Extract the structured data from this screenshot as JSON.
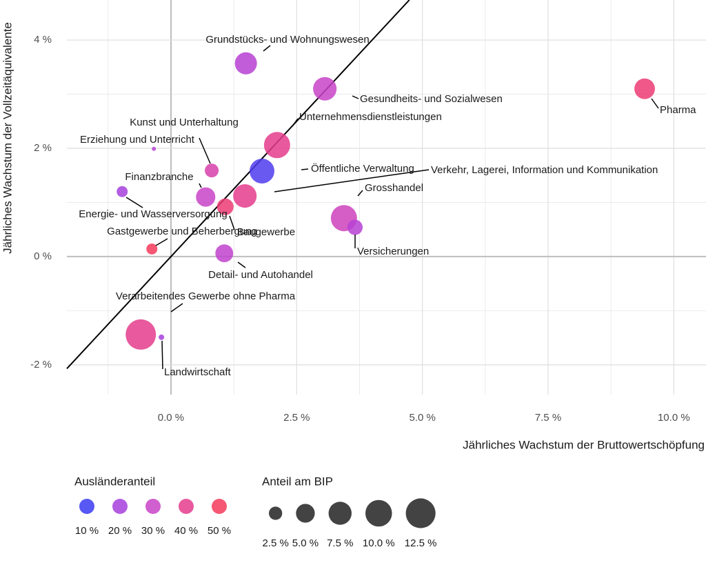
{
  "chart_data": {
    "type": "scatter",
    "x_label": "Jährliches Wachstum der Bruttowertschöpfung",
    "y_label": "Jährliches Wachstum der Vollzeitäquivalente",
    "labels": [
      "Grundstücks- und Wohnungswesen",
      "Gesundheits- und Sozialwesen",
      "Pharma",
      "Unternehmensdienstleistungen",
      "Kunst und Unterhaltung",
      "Erziehung und Unterricht",
      "Öffentliche Verwaltung",
      "Verkehr, Lagerei, Information und Kommunikation",
      "Finanzbranche",
      "Energie- und Wasserversorgung",
      "Baugewerbe",
      "Grosshandel",
      "Versicherungen",
      "Gastgewerbe und Beherbergung",
      "Detail- und Autohandel",
      "Verarbeitendes Gewerbe ohne Pharma",
      "Landwirtschaft"
    ],
    "x": [
      1.49,
      3.06,
      9.42,
      2.11,
      0.81,
      -0.34,
      1.81,
      1.47,
      0.69,
      -0.97,
      1.08,
      3.44,
      3.66,
      -0.38,
      1.06,
      -0.6,
      -0.19
    ],
    "values": [
      3.57,
      3.1,
      3.1,
      2.06,
      1.59,
      1.99,
      1.58,
      1.12,
      1.1,
      1.2,
      0.92,
      0.71,
      0.54,
      0.14,
      0.06,
      -1.44,
      -1.49
    ],
    "sizes": [
      6.9,
      7.8,
      6.0,
      9.7,
      2.7,
      0.24,
      8.7,
      7.8,
      5.3,
      1.7,
      3.9,
      9.7,
      3.3,
      1.7,
      4.5,
      13.0,
      0.43
    ],
    "foreign_share": [
      25,
      30,
      45,
      40,
      35,
      25,
      12,
      40,
      30,
      20,
      45,
      32,
      25,
      50,
      28,
      40,
      20
    ],
    "xlim": [
      -2.07,
      10.64
    ],
    "ylim": [
      -2.55,
      4.74
    ],
    "xticks": [
      {
        "value": 0,
        "label": "0.0 %"
      },
      {
        "value": 2.5,
        "label": "2.5 %"
      },
      {
        "value": 5,
        "label": "5.0 %"
      },
      {
        "value": 7.5,
        "label": "7.5 %"
      },
      {
        "value": 10,
        "label": "10.0 %"
      }
    ],
    "yticks": [
      {
        "value": -2,
        "label": "-2 %"
      },
      {
        "value": 0,
        "label": "0 %"
      },
      {
        "value": 2,
        "label": "2 %"
      },
      {
        "value": 4,
        "label": "4 %"
      }
    ],
    "xminor": [
      -1.25,
      1.25,
      3.75,
      6.25,
      8.75
    ],
    "yminor": [
      -1,
      1,
      3
    ],
    "grid": true,
    "reference_line": {
      "slope": 1,
      "intercept": 0
    },
    "color_legend": {
      "title": "Ausländeranteil",
      "values": [
        {
          "value": 10,
          "label": "10 %"
        },
        {
          "value": 20,
          "label": "20 %"
        },
        {
          "value": 30,
          "label": "30 %"
        },
        {
          "value": 40,
          "label": "40 %"
        },
        {
          "value": 50,
          "label": "50 %"
        }
      ],
      "colors": [
        "#3b3bf3",
        "#a63fdd",
        "#c843c8",
        "#e43c8c",
        "#f4395a"
      ]
    },
    "size_legend": {
      "title": "Anteil am BIP",
      "values": [
        {
          "value": 2.5,
          "label": "2.5 %"
        },
        {
          "value": 5,
          "label": "5.0 %"
        },
        {
          "value": 7.5,
          "label": "7.5 %"
        },
        {
          "value": 10,
          "label": "10.0 %"
        },
        {
          "value": 12.5,
          "label": "12.5 %"
        }
      ]
    }
  }
}
